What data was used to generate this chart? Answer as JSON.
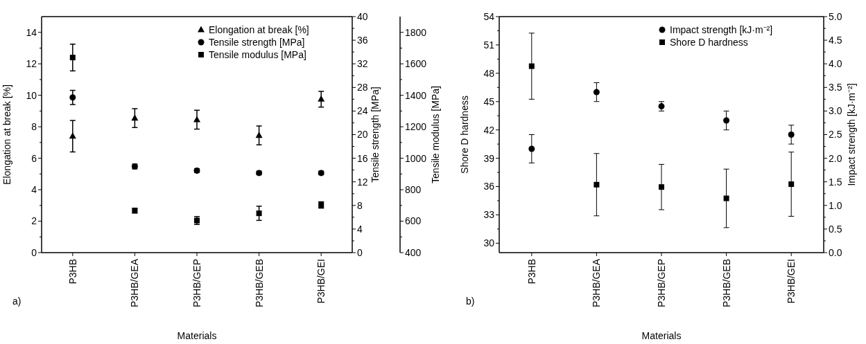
{
  "chart_data": [
    {
      "type": "scatter",
      "categories": [
        "P3HB",
        "P3HB/GEA",
        "P3HB/GEP",
        "P3HB/GEB",
        "P3HB/GEI"
      ],
      "xlabel": "Materials",
      "ylabel": "Elongation at break [%]",
      "y2label": "Tensile strength [MPa]",
      "y3label": "Tensile modulus [MPa]",
      "ylim": [
        0,
        15
      ],
      "yticks": [
        0,
        2,
        4,
        6,
        8,
        10,
        12,
        14,
        {
          "value": 1,
          "label": null
        },
        {
          "value": 3,
          "label": null
        },
        {
          "value": 5,
          "label": null
        },
        {
          "value": 7,
          "label": null
        },
        {
          "value": 9,
          "label": null
        },
        {
          "value": 11,
          "label": null
        },
        {
          "value": 13,
          "label": null
        }
      ],
      "y2lim": [
        0,
        40
      ],
      "y2ticks": [
        0,
        4,
        8,
        12,
        16,
        20,
        24,
        28,
        32,
        36,
        40,
        {
          "value": 2,
          "label": null
        },
        {
          "value": 6,
          "label": null
        },
        {
          "value": 10,
          "label": null
        },
        {
          "value": 14,
          "label": null
        },
        {
          "value": 18,
          "label": null
        },
        {
          "value": 22,
          "label": null
        },
        {
          "value": 26,
          "label": null
        },
        {
          "value": 30,
          "label": null
        },
        {
          "value": 34,
          "label": null
        },
        {
          "value": 38,
          "label": null
        }
      ],
      "y3lim": [
        400,
        1900
      ],
      "y3ticks": [
        400,
        600,
        800,
        1000,
        1200,
        1400,
        1600,
        1800,
        {
          "value": 500,
          "label": null
        },
        {
          "value": 700,
          "label": null
        },
        {
          "value": 900,
          "label": null
        },
        {
          "value": 1100,
          "label": null
        },
        {
          "value": 1300,
          "label": null
        },
        {
          "value": 1500,
          "label": null
        },
        {
          "value": 1700,
          "label": null
        }
      ],
      "legend": "top right",
      "annotations": [
        "a)"
      ],
      "series": [
        {
          "name": "Elongation at break [%]",
          "color": "#000000",
          "marker": "triangle",
          "values": [
            7.4,
            8.55,
            8.45,
            7.45,
            9.75
          ],
          "errors": [
            1.0,
            0.6,
            0.6,
            0.6,
            0.5
          ]
        },
        {
          "name": "Tensile strength [MPa]",
          "color": "#000000",
          "marker": "circle",
          "axis": "y2",
          "values": [
            26.3,
            14.6,
            13.9,
            13.5,
            13.5
          ],
          "errors": [
            1.2,
            0.4,
            0.3,
            0.3,
            0.3
          ]
        },
        {
          "name": "Tensile modulus [MPa]",
          "color": "#000000",
          "marker": "square",
          "axis": "y3",
          "values": [
            1640,
            667,
            604,
            650,
            703
          ],
          "errors": [
            85,
            15,
            25,
            45,
            20
          ]
        }
      ]
    },
    {
      "type": "scatter",
      "categories": [
        "P3HB",
        "P3HB/GEA",
        "P3HB/GEP",
        "P3HB/GEB",
        "P3HB/GEI"
      ],
      "xlabel": "Materials",
      "ylabel": "Shore D hardness",
      "y2label": "Impact strength [kJ·m⁻²]",
      "ylim": [
        29,
        54
      ],
      "yticks": [
        30,
        33,
        36,
        39,
        42,
        45,
        48,
        51,
        54,
        {
          "value": 31.5,
          "label": null
        },
        {
          "value": 34.5,
          "label": null
        },
        {
          "value": 37.5,
          "label": null
        },
        {
          "value": 40.5,
          "label": null
        },
        {
          "value": 43.5,
          "label": null
        },
        {
          "value": 46.5,
          "label": null
        },
        {
          "value": 49.5,
          "label": null
        },
        {
          "value": 52.5,
          "label": null
        }
      ],
      "y2lim": [
        0,
        5
      ],
      "y2ticks": [
        {
          "value": 0,
          "label": "0.0"
        },
        0.5,
        {
          "value": 1,
          "label": "1.0"
        },
        1.5,
        {
          "value": 2,
          "label": "2.0"
        },
        2.5,
        {
          "value": 3,
          "label": "3.0"
        },
        3.5,
        {
          "value": 4,
          "label": "4.0"
        },
        4.5,
        {
          "value": 5,
          "label": "5.0"
        },
        {
          "value": 0.25,
          "label": null
        },
        {
          "value": 0.75,
          "label": null
        },
        {
          "value": 1.25,
          "label": null
        },
        {
          "value": 1.75,
          "label": null
        },
        {
          "value": 2.25,
          "label": null
        },
        {
          "value": 2.75,
          "label": null
        },
        {
          "value": 3.25,
          "label": null
        },
        {
          "value": 3.75,
          "label": null
        },
        {
          "value": 4.25,
          "label": null
        },
        {
          "value": 4.75,
          "label": null
        }
      ],
      "legend": "top right",
      "annotations": [
        "b)"
      ],
      "series": [
        {
          "name": "Impact strength [kJ·m⁻²]",
          "color": "#000000",
          "marker": "circle",
          "axis": "y2",
          "values": [
            2.2,
            3.4,
            3.1,
            2.8,
            2.5
          ],
          "errors": [
            0.3,
            0.2,
            0.1,
            0.2,
            0.2
          ]
        },
        {
          "name": "Shore D hardness",
          "color": "#000000",
          "marker": "square",
          "values": [
            48.75,
            36.2,
            35.95,
            34.75,
            36.25
          ],
          "errors": [
            3.5,
            3.3,
            2.4,
            3.1,
            3.4
          ]
        }
      ]
    }
  ]
}
